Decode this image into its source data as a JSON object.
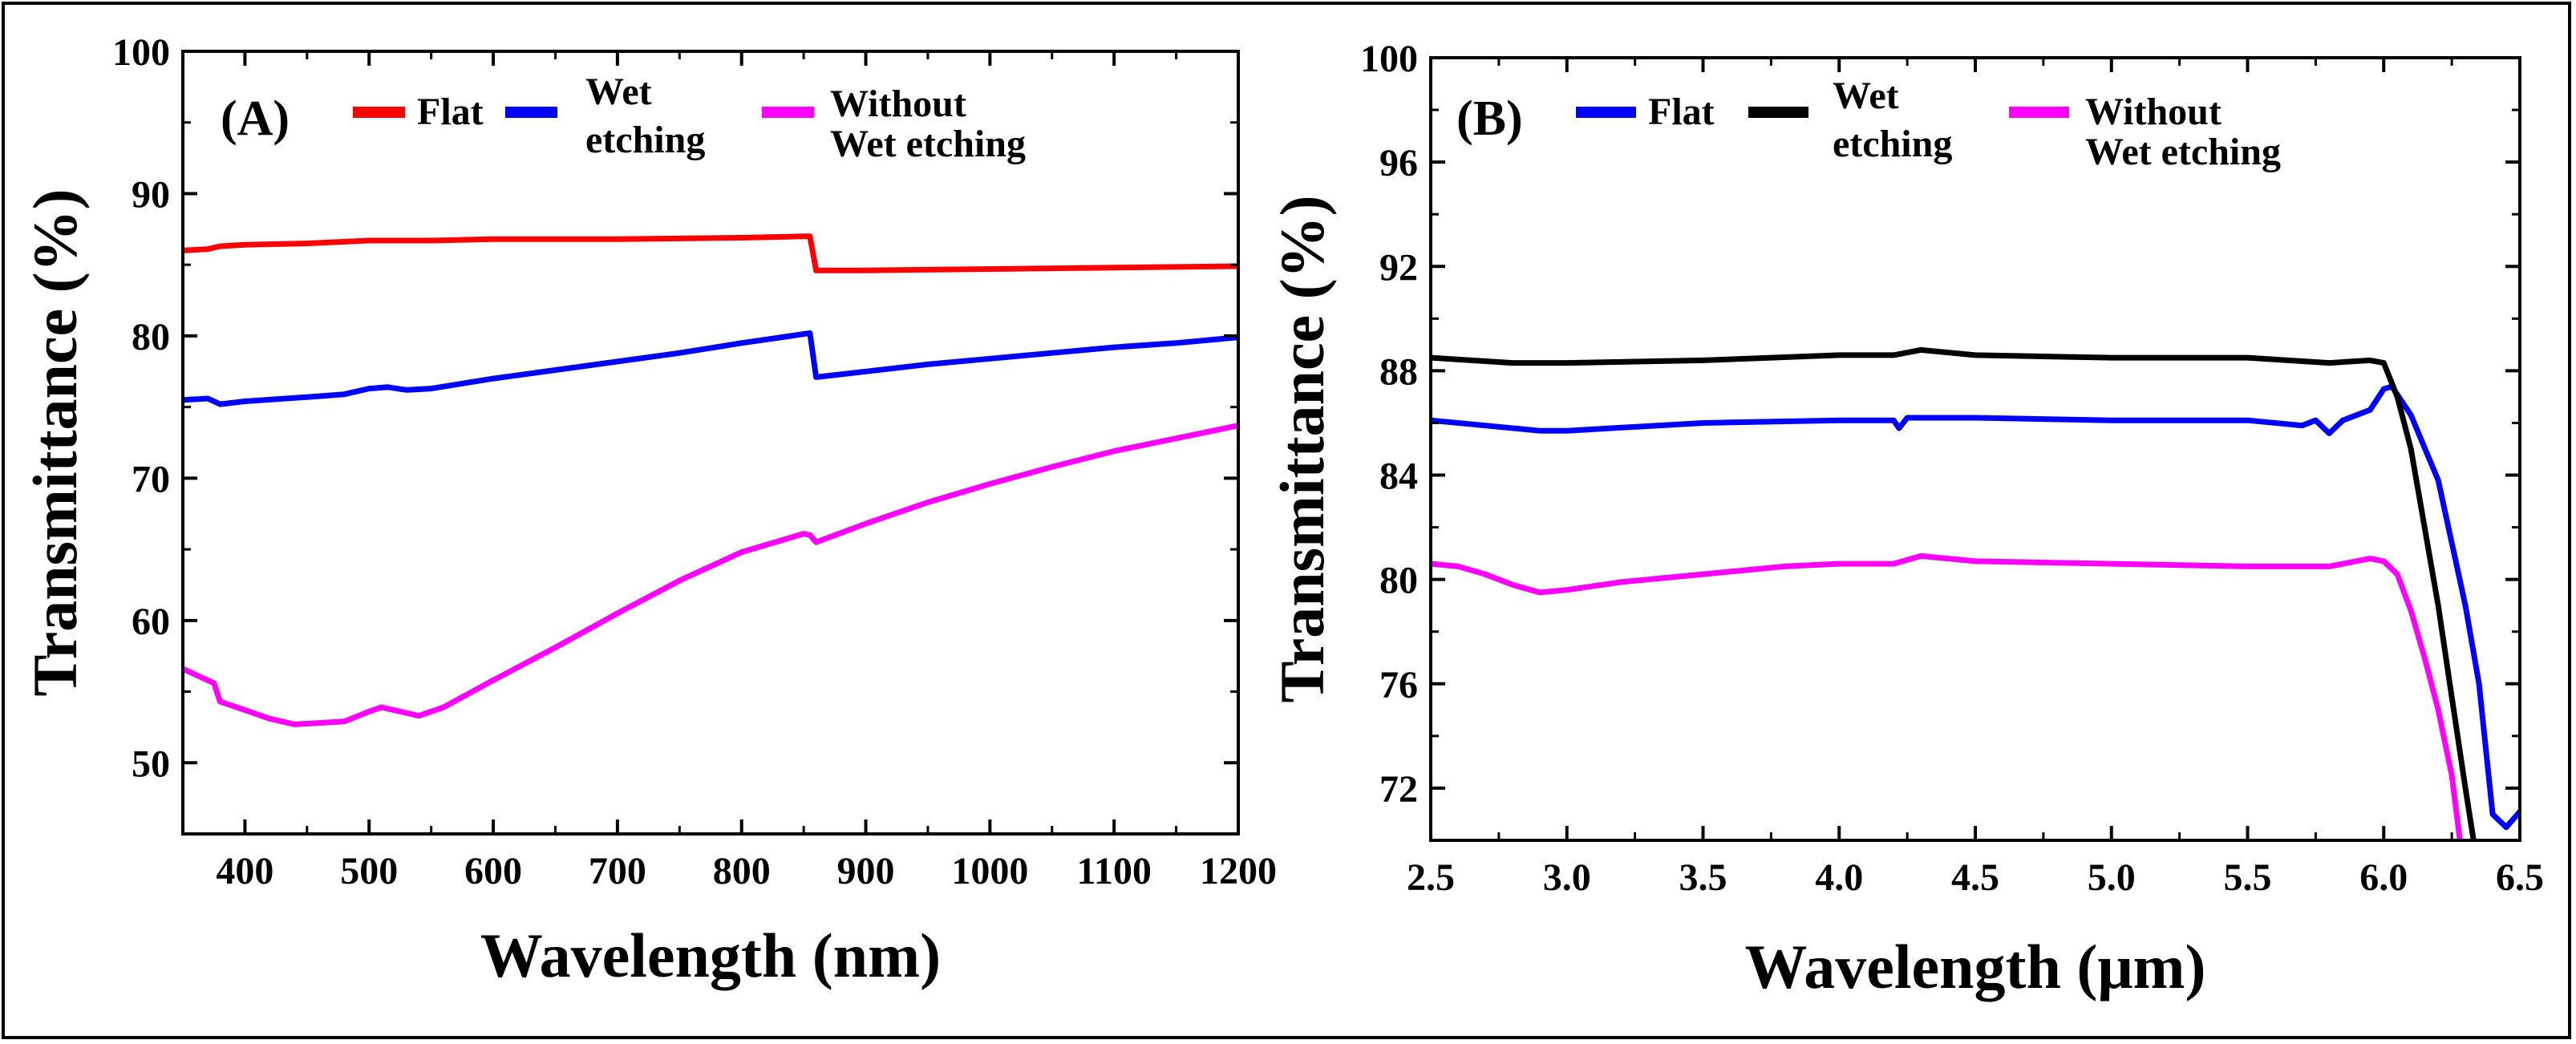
{
  "chart_data": [
    {
      "type": "line",
      "panel_label": "(A)",
      "xlabel": "Wavelength (nm)",
      "ylabel": "Transmittance (%)",
      "xlim": [
        350,
        1200
      ],
      "ylim": [
        45,
        100
      ],
      "xticks": [
        400,
        500,
        600,
        700,
        800,
        900,
        1000,
        1100,
        1200
      ],
      "yticks": [
        50,
        60,
        70,
        80,
        90,
        100
      ],
      "legend_position": "top",
      "series": [
        {
          "name": "Flat",
          "color": "#ff0000",
          "x": [
            350,
            370,
            380,
            400,
            450,
            500,
            550,
            600,
            700,
            800,
            850,
            855,
            860,
            900,
            1000,
            1100,
            1200
          ],
          "y": [
            86.0,
            86.1,
            86.3,
            86.4,
            86.5,
            86.7,
            86.7,
            86.8,
            86.8,
            86.9,
            87.0,
            87.0,
            84.6,
            84.6,
            84.7,
            84.8,
            84.9
          ]
        },
        {
          "name": "Wet etching",
          "legend_lines": [
            "Wet",
            "etching"
          ],
          "color": "#0000ff",
          "x": [
            350,
            370,
            375,
            380,
            400,
            450,
            480,
            500,
            515,
            530,
            550,
            600,
            650,
            700,
            750,
            800,
            840,
            855,
            860,
            900,
            950,
            1000,
            1050,
            1100,
            1150,
            1200
          ],
          "y": [
            75.5,
            75.6,
            75.4,
            75.2,
            75.4,
            75.7,
            75.9,
            76.3,
            76.4,
            76.2,
            76.3,
            77.0,
            77.6,
            78.2,
            78.8,
            79.5,
            80.0,
            80.2,
            77.1,
            77.5,
            78.0,
            78.4,
            78.8,
            79.2,
            79.5,
            79.9
          ]
        },
        {
          "name": "Without Wet etching",
          "legend_lines": [
            "Without",
            "Wet etching"
          ],
          "color": "#ff00ff",
          "x": [
            350,
            360,
            375,
            380,
            400,
            420,
            440,
            460,
            480,
            500,
            510,
            520,
            540,
            560,
            600,
            650,
            700,
            750,
            800,
            850,
            855,
            860,
            900,
            950,
            1000,
            1050,
            1100,
            1150,
            1200
          ],
          "y": [
            56.6,
            56.2,
            55.6,
            54.3,
            53.7,
            53.1,
            52.7,
            52.8,
            52.9,
            53.6,
            53.9,
            53.7,
            53.3,
            53.9,
            55.8,
            58.1,
            60.5,
            62.8,
            64.8,
            66.1,
            66.0,
            65.5,
            66.8,
            68.3,
            69.6,
            70.8,
            71.9,
            72.8,
            73.7
          ]
        }
      ]
    },
    {
      "type": "line",
      "panel_label": "(B)",
      "xlabel": "Wavelength (μm)",
      "ylabel": "Transmittance (%)",
      "xlim": [
        2.5,
        6.5
      ],
      "ylim": [
        70,
        100
      ],
      "xticks": [
        "2.5",
        "3.0",
        "3.5",
        "4.0",
        "4.5",
        "5.0",
        "5.5",
        "6.0",
        "6.5"
      ],
      "yticks": [
        72,
        76,
        80,
        84,
        88,
        92,
        96,
        100
      ],
      "legend_position": "top",
      "series": [
        {
          "name": "Flat",
          "color": "#0000ff",
          "x": [
            2.5,
            2.7,
            2.9,
            3.0,
            3.5,
            4.0,
            4.2,
            4.22,
            4.25,
            4.5,
            5.0,
            5.5,
            5.7,
            5.75,
            5.8,
            5.85,
            5.9,
            5.95,
            6.0,
            6.03,
            6.1,
            6.2,
            6.3,
            6.35,
            6.4,
            6.45,
            6.5
          ],
          "y": [
            86.1,
            85.9,
            85.7,
            85.7,
            86.0,
            86.1,
            86.1,
            85.8,
            86.2,
            86.2,
            86.1,
            86.1,
            85.9,
            86.1,
            85.6,
            86.1,
            86.3,
            86.5,
            87.3,
            87.4,
            86.3,
            83.8,
            79.0,
            76.0,
            71.0,
            70.5,
            71.1
          ]
        },
        {
          "name": "Wet etching",
          "legend_lines": [
            "Wet",
            "etching"
          ],
          "color": "#000000",
          "x": [
            2.5,
            2.8,
            3.0,
            3.5,
            4.0,
            4.2,
            4.3,
            4.5,
            5.0,
            5.5,
            5.8,
            5.95,
            6.0,
            6.05,
            6.1,
            6.15,
            6.2,
            6.25,
            6.3,
            6.33
          ],
          "y": [
            88.5,
            88.3,
            88.3,
            88.4,
            88.6,
            88.6,
            88.8,
            88.6,
            88.5,
            88.5,
            88.3,
            88.4,
            88.3,
            87.0,
            85.0,
            82.0,
            79.0,
            75.5,
            72.0,
            70.0
          ]
        },
        {
          "name": "Without Wet etching",
          "legend_lines": [
            "Without",
            "Wet etching"
          ],
          "color": "#ff00ff",
          "x": [
            2.5,
            2.6,
            2.7,
            2.8,
            2.9,
            3.0,
            3.2,
            3.4,
            3.6,
            3.8,
            4.0,
            4.2,
            4.3,
            4.5,
            5.0,
            5.5,
            5.8,
            5.95,
            6.0,
            6.05,
            6.1,
            6.15,
            6.2,
            6.25,
            6.28
          ],
          "y": [
            80.6,
            80.5,
            80.2,
            79.8,
            79.5,
            79.6,
            79.9,
            80.1,
            80.3,
            80.5,
            80.6,
            80.6,
            80.9,
            80.7,
            80.6,
            80.5,
            80.5,
            80.8,
            80.7,
            80.2,
            78.8,
            77.0,
            75.0,
            72.5,
            70.0
          ]
        }
      ]
    }
  ]
}
